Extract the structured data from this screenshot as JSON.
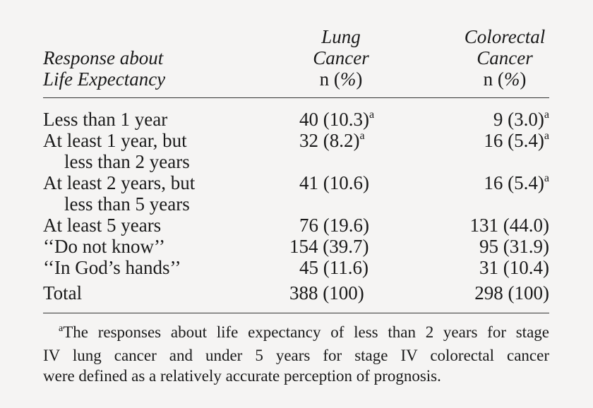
{
  "header": {
    "response_line1": "Response about",
    "response_line2": "Life Expectancy",
    "lung_line1": "Lung",
    "lung_line2": "Cancer",
    "lung_line3_n": "n (",
    "lung_line3_pct": "%",
    "lung_line3_close": ")",
    "colo_line1": "Colorectal",
    "colo_line2": "Cancer",
    "colo_line3_n": "n (",
    "colo_line3_pct": "%",
    "colo_line3_close": ")"
  },
  "rows": [
    {
      "label1": "Less than 1 year",
      "label2": "",
      "lung": "40 (10.3)",
      "lung_sup": "a",
      "colo": "9 (3.0)",
      "colo_sup": "a"
    },
    {
      "label1": "At least 1 year, but",
      "label2": "less than 2 years",
      "lung": "32 (8.2)",
      "lung_sup": "a",
      "colo": "16 (5.4)",
      "colo_sup": "a"
    },
    {
      "label1": "At least 2 years, but",
      "label2": "less than 5 years",
      "lung": "41 (10.6)",
      "lung_sup": "",
      "colo": "16 (5.4)",
      "colo_sup": "a"
    },
    {
      "label1": "At least 5 years",
      "label2": "",
      "lung": "76 (19.6)",
      "lung_sup": "",
      "colo": "131 (44.0)",
      "colo_sup": ""
    },
    {
      "label1": "‘‘Do not know’’",
      "label2": "",
      "lung": "154 (39.7)",
      "lung_sup": "",
      "colo": "95 (31.9)",
      "colo_sup": ""
    },
    {
      "label1": "‘‘In God’s hands’’",
      "label2": "",
      "lung": "45 (11.6)",
      "lung_sup": "",
      "colo": "31 (10.4)",
      "colo_sup": ""
    }
  ],
  "total": {
    "label": "Total",
    "lung": "388 (100)",
    "colo": "298 (100)"
  },
  "footnote": {
    "marker": "a",
    "line1": "The responses about life expectancy of less than 2 years for stage",
    "line2": "IV lung cancer and under 5 years for stage IV colorectal cancer",
    "line3": "were defined as a relatively accurate perception of prognosis."
  }
}
